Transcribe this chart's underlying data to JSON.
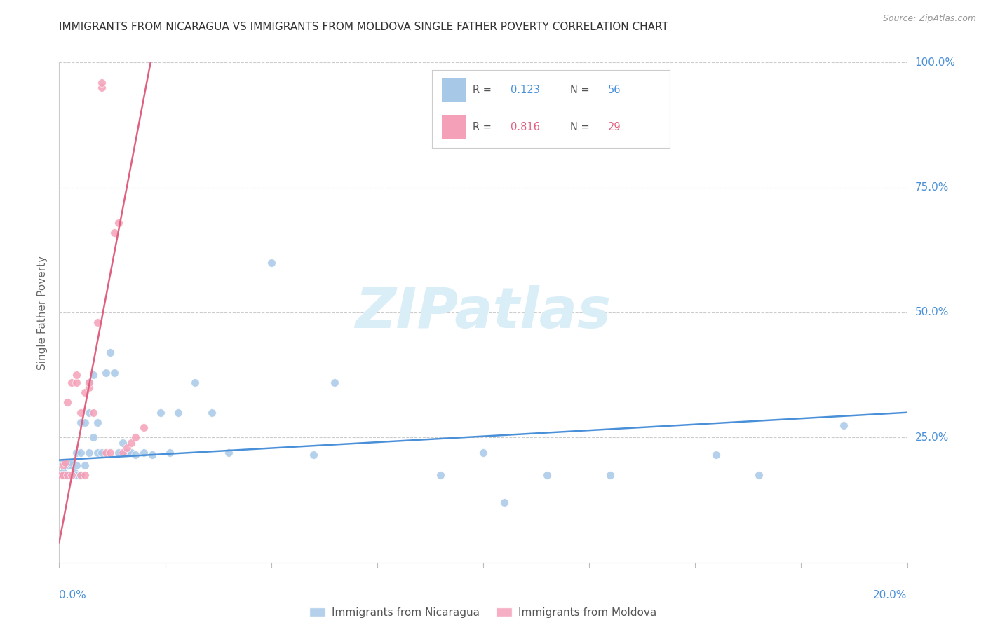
{
  "title": "IMMIGRANTS FROM NICARAGUA VS IMMIGRANTS FROM MOLDOVA SINGLE FATHER POVERTY CORRELATION CHART",
  "source": "Source: ZipAtlas.com",
  "ylabel": "Single Father Poverty",
  "color_blue": "#a8c8e8",
  "color_pink": "#f4a0b8",
  "line_blue": "#4a90d9",
  "line_pink": "#e06080",
  "text_blue": "#4a90d9",
  "text_pink": "#e06080",
  "watermark_color": "#daeef8",
  "blue_x": [
    0.0005,
    0.001,
    0.001,
    0.0015,
    0.002,
    0.002,
    0.002,
    0.0025,
    0.003,
    0.003,
    0.003,
    0.0035,
    0.004,
    0.004,
    0.004,
    0.0045,
    0.005,
    0.005,
    0.005,
    0.006,
    0.006,
    0.007,
    0.007,
    0.007,
    0.008,
    0.008,
    0.009,
    0.009,
    0.01,
    0.011,
    0.012,
    0.013,
    0.014,
    0.015,
    0.016,
    0.017,
    0.018,
    0.02,
    0.022,
    0.024,
    0.026,
    0.028,
    0.032,
    0.036,
    0.04,
    0.05,
    0.06,
    0.065,
    0.09,
    0.1,
    0.105,
    0.115,
    0.13,
    0.155,
    0.165,
    0.185
  ],
  "blue_y": [
    0.175,
    0.18,
    0.2,
    0.175,
    0.175,
    0.195,
    0.2,
    0.175,
    0.175,
    0.195,
    0.2,
    0.18,
    0.175,
    0.195,
    0.22,
    0.175,
    0.175,
    0.22,
    0.28,
    0.195,
    0.28,
    0.22,
    0.3,
    0.36,
    0.25,
    0.375,
    0.22,
    0.28,
    0.22,
    0.38,
    0.42,
    0.38,
    0.22,
    0.24,
    0.22,
    0.22,
    0.215,
    0.22,
    0.215,
    0.3,
    0.22,
    0.3,
    0.36,
    0.3,
    0.22,
    0.6,
    0.215,
    0.36,
    0.175,
    0.22,
    0.12,
    0.175,
    0.175,
    0.215,
    0.175,
    0.275
  ],
  "pink_x": [
    0.0005,
    0.001,
    0.001,
    0.0015,
    0.002,
    0.002,
    0.003,
    0.003,
    0.004,
    0.004,
    0.005,
    0.005,
    0.006,
    0.006,
    0.007,
    0.007,
    0.008,
    0.009,
    0.01,
    0.01,
    0.011,
    0.012,
    0.013,
    0.014,
    0.015,
    0.016,
    0.017,
    0.018,
    0.02
  ],
  "pink_y": [
    0.175,
    0.175,
    0.195,
    0.2,
    0.175,
    0.32,
    0.175,
    0.36,
    0.36,
    0.375,
    0.175,
    0.3,
    0.175,
    0.34,
    0.35,
    0.36,
    0.3,
    0.48,
    0.95,
    0.96,
    0.22,
    0.22,
    0.66,
    0.68,
    0.22,
    0.23,
    0.24,
    0.25,
    0.27
  ],
  "blue_trend_x": [
    0.0,
    0.2
  ],
  "blue_trend_y": [
    0.205,
    0.3
  ],
  "pink_trend_x": [
    0.0,
    0.022
  ],
  "pink_trend_y": [
    0.04,
    1.02
  ],
  "xlim": [
    0.0,
    0.2
  ],
  "ylim": [
    0.0,
    1.0
  ],
  "legend_r1": "0.123",
  "legend_n1": "56",
  "legend_r2": "0.816",
  "legend_n2": "29"
}
